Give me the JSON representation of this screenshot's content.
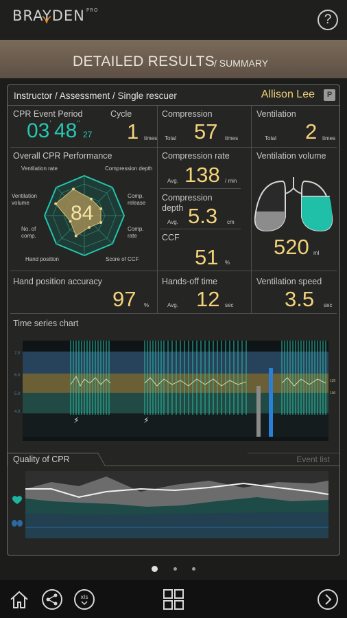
{
  "app": {
    "logo_text": "BRAYDEN",
    "logo_badge": "PRO"
  },
  "header": {
    "help_label": "?"
  },
  "title": {
    "main": "DETAILED RESULTS",
    "sub": "/ SUMMARY"
  },
  "breadcrumb": {
    "text": "Instructor / Assessment / Single rescuer",
    "user": "Allison Lee",
    "badge": "P"
  },
  "event_period": {
    "label": "CPR Event Period",
    "minutes": "03",
    "seconds": "48",
    "hundredths": "27",
    "min_mark": "'",
    "sec_mark": "''"
  },
  "cycle": {
    "label": "Cycle",
    "value": "1",
    "unit": "times"
  },
  "compression": {
    "label": "Compression",
    "prefix": "Total",
    "value": "57",
    "unit": "times"
  },
  "ventilation": {
    "label": "Ventilation",
    "prefix": "Total",
    "value": "2",
    "unit": "times"
  },
  "overall": {
    "label": "Overall CPR Performance",
    "score": "84",
    "axes": [
      "Ventilation rate",
      "Compression depth",
      "Comp. release",
      "Comp. rate",
      "Score of CCF",
      "Hand position",
      "No. of comp.",
      "Ventilation volume"
    ],
    "axis_values": [
      0.72,
      0.45,
      0.45,
      0.45,
      0.32,
      0.55,
      0.38,
      0.78
    ]
  },
  "compression_rate": {
    "label": "Compression rate",
    "prefix": "Avg.",
    "value": "138",
    "unit": "/ min"
  },
  "compression_depth": {
    "label": "Compression depth",
    "prefix": "Avg.",
    "value": "5.3",
    "unit": "cm"
  },
  "ccf": {
    "label": "CCF",
    "value": "51",
    "unit": "%"
  },
  "ventilation_volume": {
    "label": "Ventilation volume",
    "value": "520",
    "unit": "ml"
  },
  "hand_position": {
    "label": "Hand position accuracy",
    "value": "97",
    "unit": "%"
  },
  "hands_off": {
    "label": "Hands-off time",
    "prefix": "Avg.",
    "value": "12",
    "unit": "sec"
  },
  "vent_speed": {
    "label": "Ventilation speed",
    "value": "3.5",
    "unit": "sec"
  },
  "time_series": {
    "label": "Time series chart",
    "left_ticks": [
      "7.0",
      "6.0",
      "5.0",
      "4.0"
    ],
    "right_ticks": [
      "120",
      "100"
    ]
  },
  "tabs": {
    "quality": "Quality of CPR",
    "event_list": "Event list"
  },
  "colors": {
    "accent_gold": "#f3d27a",
    "accent_teal": "#27c7b0",
    "title_brown": "#6d5e50"
  },
  "bottom_icons": [
    "home-icon",
    "share-icon",
    "xls-icon",
    "grid-icon",
    "next-icon"
  ]
}
